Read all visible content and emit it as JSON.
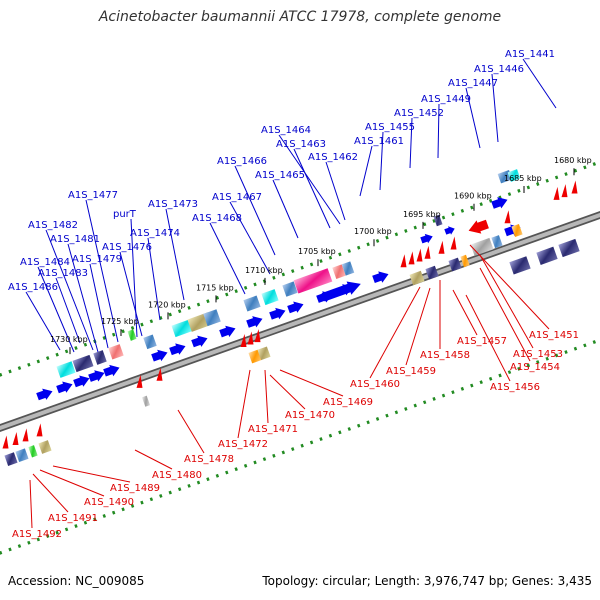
{
  "title": "Acinetobacter baumannii ATCC 17978, complete genome",
  "footer": {
    "accession": "Accession: NC_009085",
    "stats": "Topology: circular; Length: 3,976,747 bp; Genes: 3,435"
  },
  "colors": {
    "top_label": "#0000cc",
    "bottom_label": "#dd0000",
    "forward_arrow": "#0000ee",
    "reverse_arrow": "#ee0000",
    "backbone": "#888888",
    "dots": "#228b22"
  },
  "scale_labels": [
    "1730 kbp",
    "1725 kbp",
    "1720 kbp",
    "1715 kbp",
    "1710 kbp",
    "1705 kbp",
    "1700 kbp",
    "1695 kbp",
    "1690 kbp",
    "1685 kbp",
    "1680 kbp"
  ],
  "top_genes": [
    "A1S_1486",
    "A1S_1483",
    "A1S_1484",
    "A1S_1479",
    "A1S_1481",
    "A1S_1476",
    "A1S_1482",
    "purT",
    "A1S_1474",
    "A1S_1477",
    "A1S_1473",
    "A1S_1468",
    "A1S_1467",
    "A1S_1466",
    "A1S_1465",
    "A1S_1463",
    "A1S_1464",
    "A1S_1462",
    "A1S_1461",
    "A1S_1455",
    "A1S_1452",
    "A1S_1449",
    "A1S_1447",
    "A1S_1446",
    "A1S_1441"
  ],
  "bottom_genes": [
    "A1S_1492",
    "A1S_1491",
    "A1S_1490",
    "A1S_1489",
    "A1S_1480",
    "A1S_1478",
    "A1S_1472",
    "A1S_1471",
    "A1S_1470",
    "A1S_1469",
    "A1S_1460",
    "A1S_1459",
    "A1S_1458",
    "A1S_1457",
    "A1S_1456",
    "A1S_1454",
    "A1S_1453",
    "A1S_1451"
  ]
}
